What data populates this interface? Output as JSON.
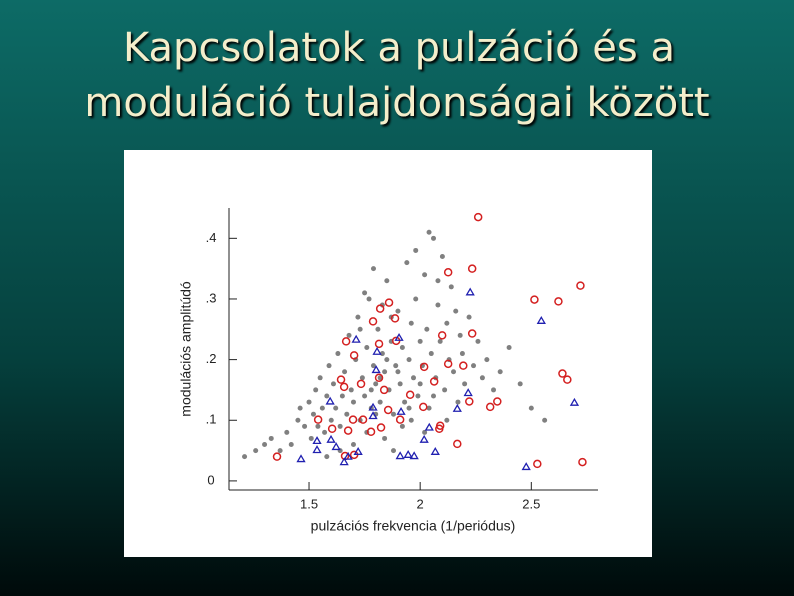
{
  "chart_data": {
    "type": "scatter",
    "title": [
      "Kapcsolatok a pulzáció és a",
      "moduláció tulajdonságai között"
    ],
    "x_label": "pulzációs frekvencia (1/periódus)",
    "y_label": "modulációs amplitúdó",
    "xlim": [
      1.14,
      2.8
    ],
    "ylim": [
      -0.015,
      0.45
    ],
    "xticks": [
      1.5,
      2,
      2.5
    ],
    "yticks": [
      0,
      {
        "value": 0.1,
        "label": ".1"
      },
      {
        "value": 0.2,
        "label": ".2"
      },
      {
        "value": 0.3,
        "label": ".3"
      },
      {
        "value": 0.4,
        "label": ".4"
      }
    ],
    "grid": false,
    "series": [
      {
        "color": "#808080",
        "marker": "dot",
        "x": [
          1.21,
          1.26,
          1.3,
          1.33,
          1.37,
          1.4,
          1.42,
          1.45,
          1.46,
          1.48,
          1.5,
          1.51,
          1.52,
          1.53,
          1.54,
          1.55,
          1.56,
          1.57,
          1.58,
          1.59,
          1.6,
          1.61,
          1.62,
          1.63,
          1.64,
          1.65,
          1.66,
          1.67,
          1.68,
          1.69,
          1.7,
          1.71,
          1.72,
          1.73,
          1.74,
          1.75,
          1.76,
          1.77,
          1.78,
          1.79,
          1.8,
          1.81,
          1.82,
          1.83,
          1.84,
          1.85,
          1.86,
          1.87,
          1.88,
          1.89,
          1.9,
          1.91,
          1.92,
          1.93,
          1.94,
          1.95,
          1.96,
          1.97,
          1.98,
          1.99,
          2.0,
          2.01,
          2.02,
          2.03,
          2.04,
          2.05,
          2.06,
          2.07,
          2.08,
          2.09,
          2.1,
          2.11,
          2.12,
          2.13,
          2.14,
          2.15,
          2.16,
          2.17,
          2.18,
          2.19,
          2.2,
          2.22,
          2.24,
          2.26,
          2.28,
          2.3,
          2.33,
          2.36,
          2.4,
          2.45,
          2.5,
          2.56,
          1.76,
          1.84,
          1.92,
          1.7,
          1.88,
          1.96,
          2.02,
          1.64,
          1.58,
          1.8,
          1.73,
          1.87,
          1.79,
          1.98,
          2.04,
          1.83,
          2.08,
          1.75,
          1.95,
          2.0,
          1.85,
          1.82,
          1.78,
          1.9,
          2.06,
          2.12
        ],
        "values": [
          0.04,
          0.05,
          0.06,
          0.07,
          0.05,
          0.08,
          0.06,
          0.1,
          0.12,
          0.09,
          0.13,
          0.07,
          0.11,
          0.15,
          0.09,
          0.17,
          0.12,
          0.08,
          0.14,
          0.19,
          0.1,
          0.16,
          0.12,
          0.21,
          0.09,
          0.14,
          0.18,
          0.11,
          0.24,
          0.15,
          0.13,
          0.2,
          0.27,
          0.1,
          0.17,
          0.14,
          0.22,
          0.3,
          0.12,
          0.19,
          0.16,
          0.25,
          0.13,
          0.21,
          0.18,
          0.33,
          0.15,
          0.23,
          0.11,
          0.19,
          0.28,
          0.16,
          0.22,
          0.13,
          0.36,
          0.2,
          0.26,
          0.17,
          0.3,
          0.14,
          0.23,
          0.19,
          0.34,
          0.25,
          0.12,
          0.21,
          0.4,
          0.17,
          0.29,
          0.23,
          0.37,
          0.15,
          0.26,
          0.2,
          0.32,
          0.18,
          0.28,
          0.13,
          0.24,
          0.21,
          0.16,
          0.27,
          0.19,
          0.23,
          0.17,
          0.2,
          0.15,
          0.18,
          0.22,
          0.16,
          0.12,
          0.1,
          0.08,
          0.07,
          0.09,
          0.06,
          0.05,
          0.1,
          0.08,
          0.05,
          0.04,
          0.11,
          0.25,
          0.27,
          0.35,
          0.38,
          0.41,
          0.29,
          0.33,
          0.31,
          0.12,
          0.16,
          0.2,
          0.17,
          0.15,
          0.18,
          0.14,
          0.1
        ]
      },
      {
        "color": "#d42020",
        "marker": "circle",
        "x": [
          2.261,
          2.126,
          2.234,
          2.721,
          2.514,
          2.622,
          1.86,
          1.82,
          1.788,
          1.887,
          2.234,
          2.099,
          1.892,
          1.667,
          1.815,
          1.703,
          2.126,
          2.194,
          2.018,
          1.644,
          1.734,
          1.815,
          2.063,
          2.64,
          2.662,
          1.658,
          1.838,
          1.955,
          1.856,
          2.014,
          2.347,
          2.315,
          2.221,
          1.541,
          1.698,
          1.743,
          1.604,
          1.676,
          1.779,
          1.91,
          2.09,
          2.167,
          1.662,
          1.703,
          1.356,
          2.527,
          2.73,
          2.086,
          1.824
        ],
        "values": [
          0.435,
          0.344,
          0.35,
          0.322,
          0.299,
          0.296,
          0.294,
          0.284,
          0.263,
          0.268,
          0.243,
          0.24,
          0.231,
          0.23,
          0.226,
          0.207,
          0.193,
          0.19,
          0.188,
          0.167,
          0.16,
          0.17,
          0.164,
          0.177,
          0.167,
          0.155,
          0.15,
          0.142,
          0.117,
          0.122,
          0.131,
          0.122,
          0.131,
          0.101,
          0.101,
          0.101,
          0.086,
          0.083,
          0.081,
          0.101,
          0.091,
          0.061,
          0.041,
          0.043,
          0.04,
          0.028,
          0.031,
          0.086,
          0.088
        ]
      },
      {
        "color": "#2020b0",
        "marker": "triangle",
        "x": [
          2.225,
          2.545,
          1.712,
          1.905,
          1.806,
          1.802,
          1.595,
          1.788,
          1.914,
          2.167,
          2.216,
          2.694,
          1.536,
          1.599,
          1.536,
          1.622,
          1.658,
          1.721,
          1.464,
          1.91,
          1.946,
          1.973,
          2.018,
          2.041,
          2.068,
          2.477,
          1.676,
          1.788
        ],
        "values": [
          0.311,
          0.264,
          0.233,
          0.236,
          0.213,
          0.183,
          0.131,
          0.121,
          0.114,
          0.119,
          0.145,
          0.129,
          0.066,
          0.068,
          0.051,
          0.056,
          0.031,
          0.048,
          0.036,
          0.041,
          0.043,
          0.041,
          0.068,
          0.088,
          0.048,
          0.023,
          0.04,
          0.107
        ]
      }
    ]
  }
}
